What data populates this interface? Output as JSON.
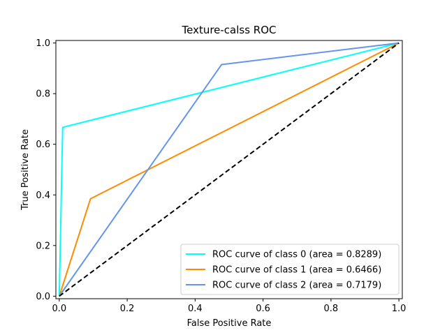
{
  "chart_data": {
    "type": "line",
    "title": "Texture-calss ROC",
    "xlabel": "False Positive Rate",
    "ylabel": "True Positive Rate",
    "xlim": [
      -0.01,
      1.01
    ],
    "ylim": [
      -0.01,
      1.01
    ],
    "x_ticks": [
      0.0,
      0.2,
      0.4,
      0.6,
      0.8,
      1.0
    ],
    "x_tick_labels": [
      "0.0",
      "0.2",
      "0.4",
      "0.6",
      "0.8",
      "1.0"
    ],
    "y_ticks": [
      0.0,
      0.2,
      0.4,
      0.6,
      0.8,
      1.0
    ],
    "y_tick_labels": [
      "0.0",
      "0.2",
      "0.4",
      "0.6",
      "0.8",
      "1.0"
    ],
    "grid": false,
    "legend_position": "lower-right",
    "series": [
      {
        "name": "ROC curve of class 0 (area = 0.8289)",
        "color": "#00ffff",
        "x": [
          0.0,
          0.01,
          1.0
        ],
        "y": [
          0.0,
          0.667,
          1.0
        ]
      },
      {
        "name": "ROC curve of class 1 (area = 0.6466)",
        "color": "#ff8c00",
        "x": [
          0.0,
          0.092,
          1.0
        ],
        "y": [
          0.0,
          0.385,
          1.0
        ]
      },
      {
        "name": "ROC curve of class 2 (area = 0.7179)",
        "color": "#6495ed",
        "x": [
          0.0,
          0.478,
          1.0
        ],
        "y": [
          0.0,
          0.915,
          1.0
        ]
      }
    ],
    "reference_line": {
      "style": "dashed",
      "color": "#000000",
      "x": [
        0.0,
        1.0
      ],
      "y": [
        0.0,
        1.0
      ]
    }
  }
}
